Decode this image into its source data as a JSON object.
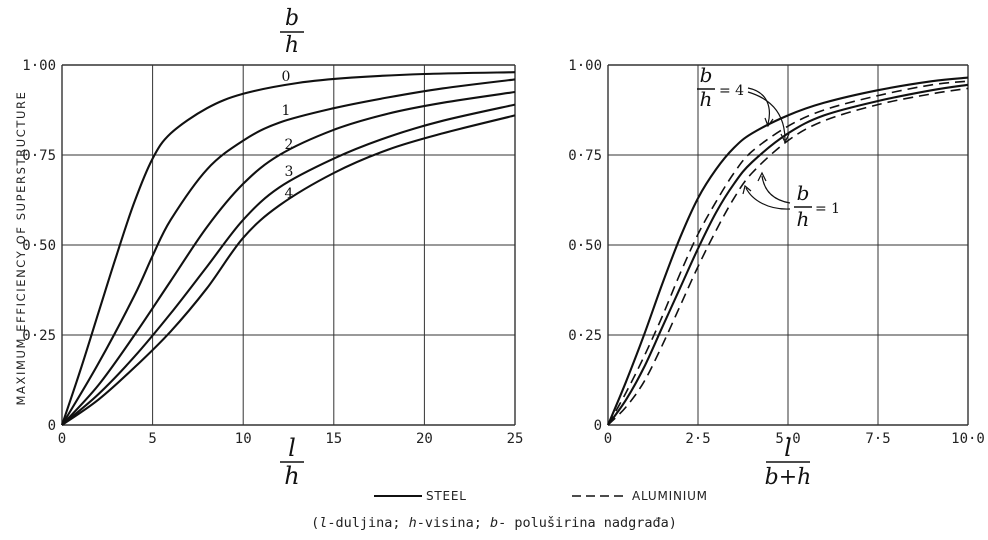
{
  "chart_data": [
    {
      "type": "line",
      "ylabel": "MAXIMUM EFFICIENCY OF SUPERSTRUCTURE",
      "xlabel": {
        "numerator": "l",
        "denominator": "h"
      },
      "xlim": [
        0,
        25
      ],
      "ylim": [
        0,
        1.0
      ],
      "x_ticks": [
        "0",
        "5",
        "10",
        "15",
        "20",
        "25"
      ],
      "y_ticks": [
        "0",
        "0·25",
        "0·50",
        "0·75",
        "1·00"
      ],
      "curve_param_label": {
        "numerator": "b",
        "denominator": "h"
      },
      "grid": true,
      "series": [
        {
          "name": "0",
          "style": "solid",
          "points": [
            [
              0,
              0
            ],
            [
              1,
              0.15
            ],
            [
              2,
              0.31
            ],
            [
              3,
              0.47
            ],
            [
              4,
              0.62
            ],
            [
              5,
              0.74
            ],
            [
              6,
              0.81
            ],
            [
              8,
              0.88
            ],
            [
              10,
              0.92
            ],
            [
              13,
              0.95
            ],
            [
              16,
              0.965
            ],
            [
              20,
              0.975
            ],
            [
              25,
              0.98
            ]
          ]
        },
        {
          "name": "1",
          "style": "solid",
          "points": [
            [
              0,
              0
            ],
            [
              2,
              0.17
            ],
            [
              4,
              0.36
            ],
            [
              5,
              0.47
            ],
            [
              6,
              0.57
            ],
            [
              8,
              0.71
            ],
            [
              10,
              0.79
            ],
            [
              12,
              0.84
            ],
            [
              15,
              0.88
            ],
            [
              18,
              0.91
            ],
            [
              21,
              0.935
            ],
            [
              25,
              0.96
            ]
          ]
        },
        {
          "name": "2",
          "style": "solid",
          "points": [
            [
              0,
              0
            ],
            [
              2,
              0.11
            ],
            [
              4,
              0.25
            ],
            [
              6,
              0.4
            ],
            [
              8,
              0.55
            ],
            [
              10,
              0.67
            ],
            [
              12,
              0.75
            ],
            [
              15,
              0.82
            ],
            [
              18,
              0.865
            ],
            [
              21,
              0.895
            ],
            [
              25,
              0.925
            ]
          ]
        },
        {
          "name": "3",
          "style": "solid",
          "points": [
            [
              0,
              0
            ],
            [
              2,
              0.085
            ],
            [
              4,
              0.19
            ],
            [
              6,
              0.31
            ],
            [
              8,
              0.44
            ],
            [
              10,
              0.57
            ],
            [
              12,
              0.66
            ],
            [
              15,
              0.74
            ],
            [
              18,
              0.8
            ],
            [
              21,
              0.845
            ],
            [
              25,
              0.89
            ]
          ]
        },
        {
          "name": "4",
          "style": "solid",
          "points": [
            [
              0,
              0
            ],
            [
              2,
              0.07
            ],
            [
              4,
              0.16
            ],
            [
              6,
              0.26
            ],
            [
              8,
              0.38
            ],
            [
              10,
              0.52
            ],
            [
              12,
              0.61
            ],
            [
              15,
              0.7
            ],
            [
              18,
              0.765
            ],
            [
              21,
              0.81
            ],
            [
              25,
              0.86
            ]
          ]
        }
      ]
    },
    {
      "type": "line",
      "xlabel": {
        "numerator": "l",
        "denominator": "b+h"
      },
      "xlim": [
        0,
        10
      ],
      "ylim": [
        0,
        1.0
      ],
      "x_ticks": [
        "0",
        "2·5",
        "5·0",
        "7·5",
        "10·0"
      ],
      "y_ticks": [
        "0",
        "0·25",
        "0·50",
        "0·75",
        "1·00"
      ],
      "grid": true,
      "annotations": [
        {
          "fraction": {
            "numerator": "b",
            "denominator": "h"
          },
          "value": "= 4"
        },
        {
          "fraction": {
            "numerator": "b",
            "denominator": "h"
          },
          "value": "= 1"
        }
      ],
      "series": [
        {
          "name": "steel b/h=4",
          "material": "steel",
          "style": "solid",
          "points": [
            [
              0,
              0
            ],
            [
              0.5,
              0.12
            ],
            [
              1,
              0.25
            ],
            [
              1.5,
              0.39
            ],
            [
              2,
              0.52
            ],
            [
              2.5,
              0.63
            ],
            [
              3,
              0.71
            ],
            [
              3.5,
              0.77
            ],
            [
              4,
              0.81
            ],
            [
              5,
              0.86
            ],
            [
              6,
              0.895
            ],
            [
              7.5,
              0.93
            ],
            [
              9,
              0.955
            ],
            [
              10,
              0.965
            ]
          ]
        },
        {
          "name": "aluminium b/h=4",
          "material": "aluminium",
          "style": "dashed",
          "points": [
            [
              0,
              0
            ],
            [
              0.5,
              0.09
            ],
            [
              1,
              0.19
            ],
            [
              1.5,
              0.3
            ],
            [
              2,
              0.42
            ],
            [
              2.5,
              0.53
            ],
            [
              3,
              0.62
            ],
            [
              3.5,
              0.7
            ],
            [
              4,
              0.76
            ],
            [
              5,
              0.83
            ],
            [
              6,
              0.875
            ],
            [
              7.5,
              0.915
            ],
            [
              9,
              0.945
            ],
            [
              10,
              0.955
            ]
          ]
        },
        {
          "name": "steel b/h=1",
          "material": "steel",
          "style": "solid",
          "points": [
            [
              0,
              0
            ],
            [
              0.5,
              0.07
            ],
            [
              1,
              0.16
            ],
            [
              1.5,
              0.27
            ],
            [
              2,
              0.38
            ],
            [
              2.5,
              0.49
            ],
            [
              3,
              0.59
            ],
            [
              3.5,
              0.67
            ],
            [
              4,
              0.73
            ],
            [
              5,
              0.81
            ],
            [
              6,
              0.86
            ],
            [
              7.5,
              0.9
            ],
            [
              9,
              0.93
            ],
            [
              10,
              0.945
            ]
          ]
        },
        {
          "name": "aluminium b/h=1",
          "material": "aluminium",
          "style": "dashed",
          "points": [
            [
              0,
              0
            ],
            [
              0.5,
              0.05
            ],
            [
              1,
              0.12
            ],
            [
              1.5,
              0.22
            ],
            [
              2,
              0.33
            ],
            [
              2.5,
              0.44
            ],
            [
              3,
              0.54
            ],
            [
              3.5,
              0.63
            ],
            [
              4,
              0.7
            ],
            [
              5,
              0.79
            ],
            [
              6,
              0.845
            ],
            [
              7.5,
              0.89
            ],
            [
              9,
              0.92
            ],
            [
              10,
              0.935
            ]
          ]
        }
      ]
    }
  ],
  "legend": {
    "steel": "STEEL",
    "aluminium": "ALUMINIUM"
  },
  "caption": {
    "open": "(",
    "l": "l",
    "l_text": "-duljina; ",
    "h": "h",
    "h_text": "-visina; ",
    "b": "b",
    "b_text": "- poluširina nadgrađa)"
  }
}
